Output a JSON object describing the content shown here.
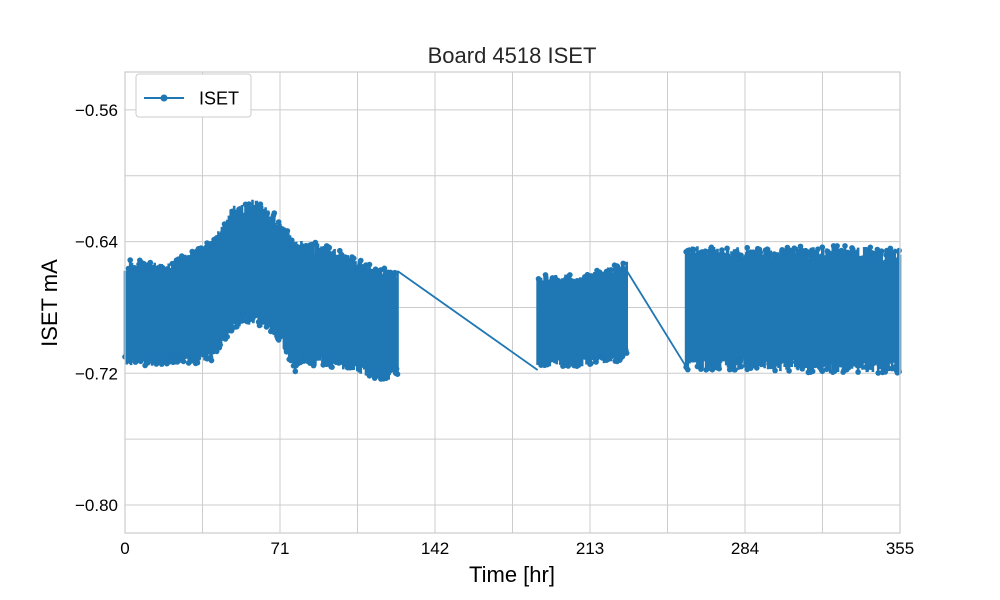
{
  "chart_data": {
    "type": "line",
    "title": "Board 4518 ISET",
    "xlabel": "Time [hr]",
    "ylabel": "ISET mA",
    "xlim": [
      0,
      355
    ],
    "ylim": [
      -0.817,
      -0.537
    ],
    "x_ticks": [
      0,
      71,
      142,
      213,
      284,
      355
    ],
    "x_tick_labels": [
      "0",
      "71",
      "142",
      "213",
      "284",
      "355"
    ],
    "x_minor_grid": [
      35.5,
      106.5,
      177.5,
      248.5,
      319.5
    ],
    "y_ticks": [
      -0.8,
      -0.72,
      -0.64,
      -0.56
    ],
    "y_tick_labels": [
      "−0.80",
      "−0.72",
      "−0.64",
      "−0.56"
    ],
    "y_minor_grid": [
      -0.76,
      -0.68,
      -0.6
    ],
    "grid": true,
    "legend": {
      "position": "top-left",
      "entries": [
        "ISET"
      ]
    },
    "series": [
      {
        "name": "ISET",
        "color": "#1f77b4",
        "marker": "circle",
        "segments": [
          {
            "x_start": 0,
            "x_end": 125,
            "band_center": [
              [
                0,
                -0.683
              ],
              [
                20,
                -0.684
              ],
              [
                40,
                -0.676
              ],
              [
                50,
                -0.655
              ],
              [
                60,
                -0.652
              ],
              [
                70,
                -0.662
              ],
              [
                78,
                -0.679
              ],
              [
                90,
                -0.678
              ],
              [
                105,
                -0.684
              ],
              [
                115,
                -0.69
              ],
              [
                125,
                -0.69
              ]
            ],
            "band_half_width": [
              [
                0,
                0.032
              ],
              [
                20,
                0.032
              ],
              [
                40,
                0.037
              ],
              [
                50,
                0.038
              ],
              [
                60,
                0.038
              ],
              [
                70,
                0.038
              ],
              [
                78,
                0.04
              ],
              [
                90,
                0.037
              ],
              [
                105,
                0.035
              ],
              [
                115,
                0.035
              ],
              [
                125,
                0.033
              ]
            ]
          },
          {
            "x_start": 189,
            "x_end": 230,
            "band_center": [
              [
                189,
                -0.688
              ],
              [
                210,
                -0.688
              ],
              [
                230,
                -0.682
              ]
            ],
            "band_half_width": [
              [
                189,
                0.028
              ],
              [
                210,
                0.028
              ],
              [
                230,
                0.03
              ]
            ]
          },
          {
            "x_start": 257,
            "x_end": 355,
            "band_center": [
              [
                257,
                -0.68
              ],
              [
                290,
                -0.681
              ],
              [
                320,
                -0.681
              ],
              [
                355,
                -0.682
              ]
            ],
            "band_half_width": [
              [
                257,
                0.038
              ],
              [
                290,
                0.037
              ],
              [
                320,
                0.039
              ],
              [
                355,
                0.038
              ]
            ]
          }
        ],
        "connectors": [
          {
            "from": [
              125,
              -0.658
            ],
            "to": [
              189,
              -0.718
            ]
          },
          {
            "from": [
              230,
              -0.658
            ],
            "to": [
              257,
              -0.716
            ]
          }
        ]
      }
    ]
  }
}
